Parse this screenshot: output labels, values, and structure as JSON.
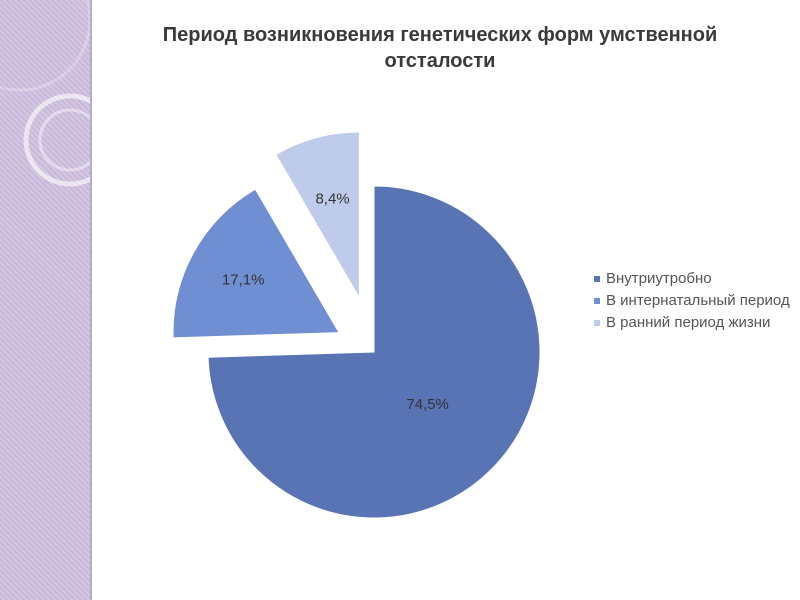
{
  "chart_data": {
    "type": "pie",
    "title": "Период возникновения генетических форм умственной отсталости",
    "slices": [
      {
        "name": "Внутриутробно",
        "value": 74.5,
        "label": "74,5%",
        "color": "#5874b4"
      },
      {
        "name": "В интернатальный период",
        "value": 17.1,
        "label": "17,1%",
        "color": "#6f8fd2"
      },
      {
        "name": "В ранний период жизни",
        "value": 8.4,
        "label": "8,4%",
        "color": "#bfcbeb"
      }
    ],
    "exploded": true,
    "legend_position": "right"
  },
  "colors": {
    "sidebar": "#c7b9d8",
    "title_text": "#3a3a3a",
    "legend_text": "#555555"
  }
}
